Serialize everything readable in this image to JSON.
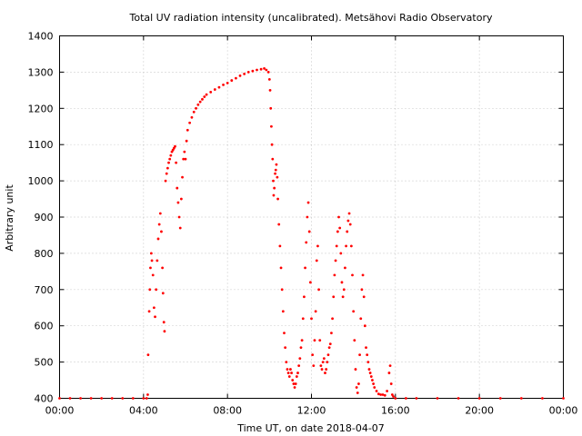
{
  "chart_data": {
    "type": "scatter",
    "title": "Total UV radiation intensity (uncalibrated). Metsähovi Radio Observatory",
    "xlabel": "Time UT, on date 2018-04-07",
    "ylabel": "Arbitrary unit",
    "xlim": [
      0,
      24
    ],
    "ylim": [
      400,
      1400
    ],
    "x_ticks": [
      "00:00",
      "04:00",
      "08:00",
      "12:00",
      "16:00",
      "20:00",
      "00:00"
    ],
    "y_ticks": [
      "400",
      "500",
      "600",
      "700",
      "800",
      "900",
      "1000",
      "1100",
      "1200",
      "1300",
      "1400"
    ],
    "grid": true,
    "marker_color": "#ff0000",
    "series": [
      {
        "x_unit": "hours UT",
        "points": [
          [
            0.0,
            400
          ],
          [
            0.5,
            400
          ],
          [
            1.0,
            400
          ],
          [
            1.5,
            400
          ],
          [
            2.0,
            400
          ],
          [
            2.5,
            400
          ],
          [
            3.0,
            400
          ],
          [
            3.5,
            400
          ],
          [
            4.0,
            400
          ],
          [
            4.15,
            400
          ],
          [
            4.2,
            410
          ],
          [
            4.22,
            520
          ],
          [
            4.27,
            640
          ],
          [
            4.3,
            700
          ],
          [
            4.33,
            760
          ],
          [
            4.37,
            800
          ],
          [
            4.4,
            780
          ],
          [
            4.45,
            740
          ],
          [
            4.5,
            650
          ],
          [
            4.55,
            625
          ],
          [
            4.6,
            700
          ],
          [
            4.65,
            780
          ],
          [
            4.7,
            840
          ],
          [
            4.75,
            880
          ],
          [
            4.8,
            910
          ],
          [
            4.85,
            860
          ],
          [
            4.9,
            760
          ],
          [
            4.93,
            690
          ],
          [
            4.97,
            610
          ],
          [
            5.0,
            585
          ],
          [
            5.05,
            1000
          ],
          [
            5.1,
            1020
          ],
          [
            5.15,
            1035
          ],
          [
            5.2,
            1050
          ],
          [
            5.25,
            1060
          ],
          [
            5.3,
            1070
          ],
          [
            5.35,
            1080
          ],
          [
            5.4,
            1085
          ],
          [
            5.45,
            1090
          ],
          [
            5.5,
            1095
          ],
          [
            5.55,
            1050
          ],
          [
            5.6,
            980
          ],
          [
            5.65,
            940
          ],
          [
            5.7,
            900
          ],
          [
            5.75,
            870
          ],
          [
            5.8,
            950
          ],
          [
            5.85,
            1010
          ],
          [
            5.9,
            1060
          ],
          [
            5.95,
            1080
          ],
          [
            6.0,
            1060
          ],
          [
            6.05,
            1110
          ],
          [
            6.1,
            1140
          ],
          [
            6.2,
            1160
          ],
          [
            6.3,
            1175
          ],
          [
            6.4,
            1190
          ],
          [
            6.5,
            1200
          ],
          [
            6.6,
            1210
          ],
          [
            6.7,
            1218
          ],
          [
            6.8,
            1225
          ],
          [
            6.9,
            1232
          ],
          [
            7.0,
            1238
          ],
          [
            7.2,
            1245
          ],
          [
            7.4,
            1252
          ],
          [
            7.6,
            1258
          ],
          [
            7.8,
            1265
          ],
          [
            8.0,
            1270
          ],
          [
            8.2,
            1277
          ],
          [
            8.4,
            1283
          ],
          [
            8.6,
            1290
          ],
          [
            8.8,
            1295
          ],
          [
            9.0,
            1300
          ],
          [
            9.2,
            1303
          ],
          [
            9.4,
            1306
          ],
          [
            9.6,
            1308
          ],
          [
            9.75,
            1310
          ],
          [
            9.85,
            1306
          ],
          [
            9.95,
            1300
          ],
          [
            10.0,
            1280
          ],
          [
            10.03,
            1250
          ],
          [
            10.06,
            1200
          ],
          [
            10.09,
            1150
          ],
          [
            10.12,
            1100
          ],
          [
            10.15,
            1060
          ],
          [
            10.18,
            1000
          ],
          [
            10.2,
            960
          ],
          [
            10.23,
            980
          ],
          [
            10.27,
            1020
          ],
          [
            10.3,
            1030
          ],
          [
            10.33,
            1045
          ],
          [
            10.37,
            1010
          ],
          [
            10.4,
            950
          ],
          [
            10.45,
            880
          ],
          [
            10.5,
            820
          ],
          [
            10.55,
            760
          ],
          [
            10.6,
            700
          ],
          [
            10.65,
            640
          ],
          [
            10.7,
            580
          ],
          [
            10.75,
            540
          ],
          [
            10.8,
            500
          ],
          [
            10.85,
            480
          ],
          [
            10.9,
            470
          ],
          [
            10.95,
            460
          ],
          [
            11.0,
            480
          ],
          [
            11.05,
            470
          ],
          [
            11.1,
            450
          ],
          [
            11.15,
            440
          ],
          [
            11.2,
            430
          ],
          [
            11.25,
            440
          ],
          [
            11.3,
            460
          ],
          [
            11.35,
            470
          ],
          [
            11.4,
            490
          ],
          [
            11.45,
            510
          ],
          [
            11.5,
            540
          ],
          [
            11.55,
            560
          ],
          [
            11.6,
            620
          ],
          [
            11.65,
            680
          ],
          [
            11.7,
            760
          ],
          [
            11.75,
            830
          ],
          [
            11.8,
            900
          ],
          [
            11.85,
            940
          ],
          [
            11.9,
            860
          ],
          [
            11.95,
            720
          ],
          [
            12.0,
            620
          ],
          [
            12.05,
            520
          ],
          [
            12.1,
            490
          ],
          [
            12.15,
            560
          ],
          [
            12.2,
            640
          ],
          [
            12.25,
            780
          ],
          [
            12.3,
            820
          ],
          [
            12.35,
            700
          ],
          [
            12.4,
            560
          ],
          [
            12.45,
            490
          ],
          [
            12.5,
            480
          ],
          [
            12.55,
            500
          ],
          [
            12.6,
            510
          ],
          [
            12.65,
            470
          ],
          [
            12.7,
            480
          ],
          [
            12.75,
            500
          ],
          [
            12.8,
            520
          ],
          [
            12.85,
            540
          ],
          [
            12.9,
            550
          ],
          [
            12.95,
            580
          ],
          [
            13.0,
            620
          ],
          [
            13.05,
            680
          ],
          [
            13.1,
            740
          ],
          [
            13.15,
            780
          ],
          [
            13.2,
            820
          ],
          [
            13.25,
            860
          ],
          [
            13.3,
            900
          ],
          [
            13.35,
            870
          ],
          [
            13.4,
            800
          ],
          [
            13.45,
            720
          ],
          [
            13.5,
            680
          ],
          [
            13.55,
            700
          ],
          [
            13.6,
            760
          ],
          [
            13.65,
            820
          ],
          [
            13.7,
            860
          ],
          [
            13.75,
            890
          ],
          [
            13.8,
            910
          ],
          [
            13.85,
            880
          ],
          [
            13.9,
            820
          ],
          [
            13.95,
            740
          ],
          [
            14.0,
            640
          ],
          [
            14.05,
            560
          ],
          [
            14.1,
            480
          ],
          [
            14.15,
            430
          ],
          [
            14.2,
            415
          ],
          [
            14.25,
            440
          ],
          [
            14.3,
            520
          ],
          [
            14.35,
            620
          ],
          [
            14.4,
            700
          ],
          [
            14.45,
            740
          ],
          [
            14.5,
            680
          ],
          [
            14.55,
            600
          ],
          [
            14.6,
            540
          ],
          [
            14.65,
            520
          ],
          [
            14.7,
            500
          ],
          [
            14.75,
            480
          ],
          [
            14.8,
            470
          ],
          [
            14.85,
            460
          ],
          [
            14.9,
            450
          ],
          [
            14.95,
            440
          ],
          [
            15.0,
            430
          ],
          [
            15.1,
            420
          ],
          [
            15.2,
            412
          ],
          [
            15.3,
            410
          ],
          [
            15.4,
            410
          ],
          [
            15.5,
            408
          ],
          [
            15.6,
            420
          ],
          [
            15.7,
            470
          ],
          [
            15.75,
            490
          ],
          [
            15.8,
            440
          ],
          [
            15.85,
            410
          ],
          [
            15.9,
            405
          ],
          [
            16.0,
            400
          ],
          [
            16.5,
            400
          ],
          [
            17.0,
            400
          ],
          [
            18.0,
            400
          ],
          [
            19.0,
            400
          ],
          [
            20.0,
            400
          ],
          [
            21.0,
            400
          ],
          [
            22.0,
            400
          ],
          [
            23.0,
            400
          ],
          [
            24.0,
            400
          ]
        ]
      }
    ]
  }
}
